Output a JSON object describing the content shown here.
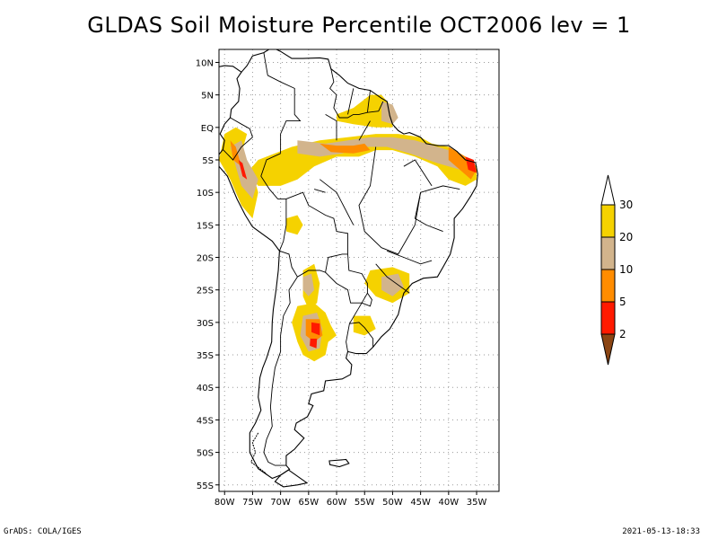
{
  "title": "GLDAS Soil Moisture Percentile OCT2006 lev = 1",
  "footer": {
    "left": "GrADS: COLA/IGES",
    "right": "2021-05-13-18:33"
  },
  "map": {
    "lat_range": [
      -56,
      12
    ],
    "lon_range": [
      -81,
      -31
    ],
    "lat_ticks": [
      {
        "value": 10,
        "label": "10N"
      },
      {
        "value": 5,
        "label": "5N"
      },
      {
        "value": 0,
        "label": "EQ"
      },
      {
        "value": -5,
        "label": "5S"
      },
      {
        "value": -10,
        "label": "10S"
      },
      {
        "value": -15,
        "label": "15S"
      },
      {
        "value": -20,
        "label": "20S"
      },
      {
        "value": -25,
        "label": "25S"
      },
      {
        "value": -30,
        "label": "30S"
      },
      {
        "value": -35,
        "label": "35S"
      },
      {
        "value": -40,
        "label": "40S"
      },
      {
        "value": -45,
        "label": "45S"
      },
      {
        "value": -50,
        "label": "50S"
      },
      {
        "value": -55,
        "label": "55S"
      }
    ],
    "lon_ticks": [
      {
        "value": -80,
        "label": "80W"
      },
      {
        "value": -75,
        "label": "75W"
      },
      {
        "value": -70,
        "label": "70W"
      },
      {
        "value": -65,
        "label": "65W"
      },
      {
        "value": -60,
        "label": "60W"
      },
      {
        "value": -55,
        "label": "55W"
      },
      {
        "value": -50,
        "label": "50W"
      },
      {
        "value": -45,
        "label": "45W"
      },
      {
        "value": -40,
        "label": "40W"
      },
      {
        "value": -35,
        "label": "35W"
      }
    ],
    "grid": true
  },
  "legend": {
    "colors": {
      "c30plus": "#ffffff",
      "c20_30": "#f5d200",
      "c10_20": "#d2b48c",
      "c5_10": "#ff8c00",
      "c2_5": "#ff1a00",
      "cbelow2": "#8b4513"
    },
    "labels": [
      "30",
      "20",
      "10",
      "5",
      "2"
    ]
  },
  "colors": {
    "yellow": "#f5d200",
    "tan": "#d2b48c",
    "orange": "#ff8c00",
    "red": "#ff1a00",
    "grid": "#9a9a9a",
    "coast": "#000000"
  }
}
